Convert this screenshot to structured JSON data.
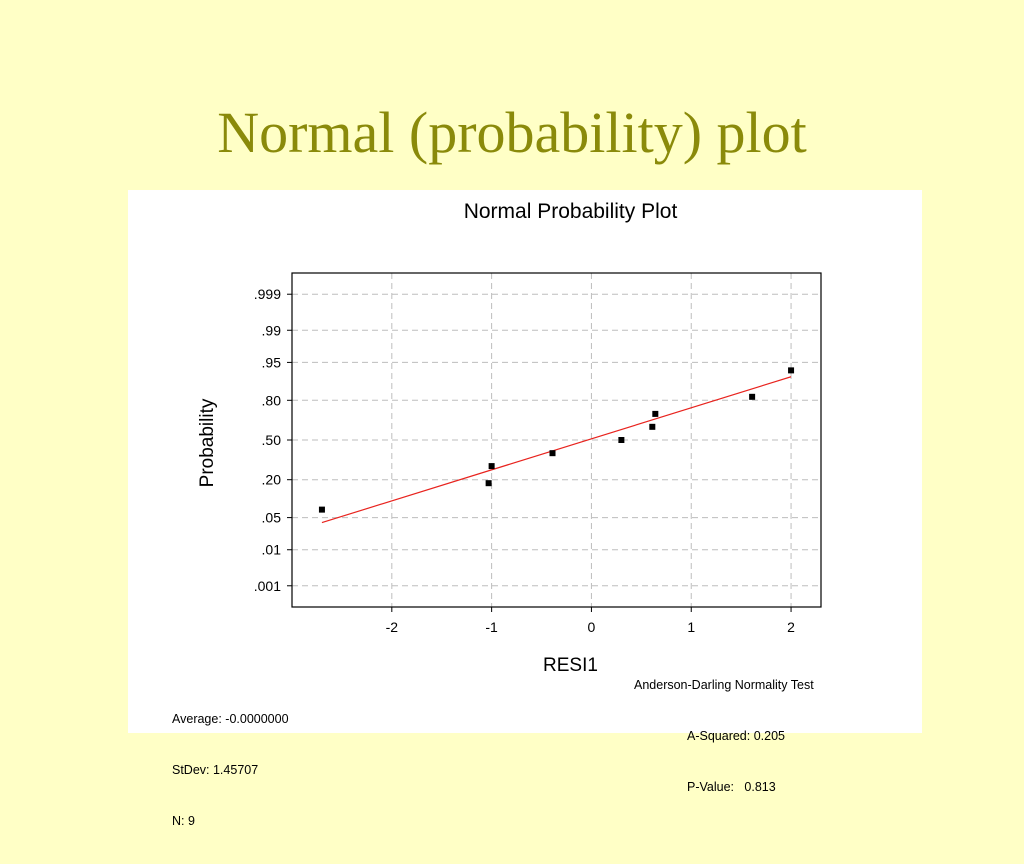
{
  "slide": {
    "title": "Normal (probability) plot"
  },
  "chart_data": {
    "type": "scatter",
    "title": "Normal Probability Plot",
    "xlabel": "RESI1",
    "ylabel": "Probability",
    "xlim": [
      -3.0,
      2.3
    ],
    "x_ticks": [
      -2,
      -1,
      0,
      1,
      2
    ],
    "x_tick_labels": [
      "-2",
      "-1",
      "0",
      "1",
      "2"
    ],
    "y_scale": "normal-probability",
    "ylim": [
      0.0002,
      0.9998
    ],
    "y_ticks": [
      0.001,
      0.01,
      0.05,
      0.2,
      0.5,
      0.8,
      0.95,
      0.99,
      0.999
    ],
    "y_tick_labels": [
      ".001",
      ".01",
      ".05",
      ".20",
      ".50",
      ".80",
      ".95",
      ".99",
      ".999"
    ],
    "grid": true,
    "points": [
      {
        "x": -2.7,
        "y": 0.07
      },
      {
        "x": -1.03,
        "y": 0.18
      },
      {
        "x": -1.0,
        "y": 0.29
      },
      {
        "x": -0.39,
        "y": 0.39
      },
      {
        "x": 0.3,
        "y": 0.5
      },
      {
        "x": 0.61,
        "y": 0.61
      },
      {
        "x": 0.64,
        "y": 0.71
      },
      {
        "x": 1.61,
        "y": 0.82
      },
      {
        "x": 2.0,
        "y": 0.93
      }
    ],
    "fit_line": {
      "x": [
        -2.7,
        2.0
      ],
      "y": [
        0.04,
        0.91
      ],
      "color": "#E8231E"
    },
    "point_color": "#000000"
  },
  "stats": {
    "average": "Average: -0.0000000",
    "stdev": "StDev: 1.45707",
    "n": "N: 9",
    "test_title": "Anderson-Darling Normality Test",
    "a_squared": "A-Squared: 0.205",
    "p_value": "P-Value:   0.813"
  }
}
